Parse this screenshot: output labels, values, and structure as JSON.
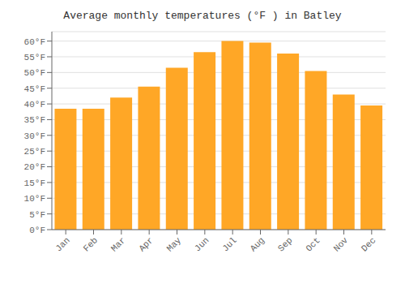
{
  "chart_data": {
    "type": "bar",
    "title": "Average monthly temperatures (°F ) in Batley",
    "categories": [
      "Jan",
      "Feb",
      "Mar",
      "Apr",
      "May",
      "Jun",
      "Jul",
      "Aug",
      "Sep",
      "Oct",
      "Nov",
      "Dec"
    ],
    "values": [
      38.5,
      38.5,
      42.0,
      45.5,
      51.5,
      56.5,
      60.0,
      59.5,
      56.0,
      50.5,
      43.0,
      39.5
    ],
    "color": "#FFA726",
    "ylim": [
      0,
      63
    ],
    "yticks": [
      {
        "value": 0,
        "label": "0°F"
      },
      {
        "value": 5,
        "label": "5°F"
      },
      {
        "value": 10,
        "label": "10°F"
      },
      {
        "value": 15,
        "label": "15°F"
      },
      {
        "value": 20,
        "label": "20°F"
      },
      {
        "value": 25,
        "label": "25°F"
      },
      {
        "value": 30,
        "label": "30°F"
      },
      {
        "value": 35,
        "label": "35°F"
      },
      {
        "value": 40,
        "label": "40°F"
      },
      {
        "value": 45,
        "label": "45°F"
      },
      {
        "value": 50,
        "label": "50°F"
      },
      {
        "value": 55,
        "label": "55°F"
      },
      {
        "value": 60,
        "label": "60°F"
      }
    ],
    "grid": true
  }
}
